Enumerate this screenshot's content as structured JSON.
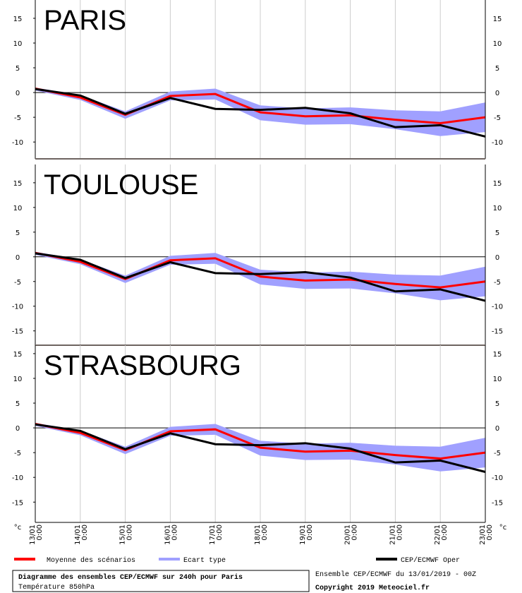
{
  "chart_data": [
    {
      "type": "line",
      "title": "PARIS",
      "categories": [
        "13/01",
        "14/01",
        "15/01",
        "16/01",
        "17/01",
        "18/01",
        "19/01",
        "20/01",
        "21/01",
        "22/01",
        "23/01"
      ],
      "times": [
        "0:00",
        "0:00",
        "0:00",
        "0:00",
        "0:00",
        "0:00",
        "0:00",
        "0:00",
        "0:00",
        "0:00",
        "0:00"
      ],
      "ylim": [
        -13.4,
        18.7
      ],
      "yticks": [
        15,
        10,
        5,
        0,
        -5,
        -10
      ],
      "series": [
        {
          "name": "Ecart type",
          "color": "#a0a0ff",
          "upper": [
            1,
            -0.5,
            -3.8,
            0.2,
            0.8,
            -2.6,
            -3.2,
            -3,
            -3.6,
            -3.8,
            -2
          ],
          "lower": [
            0.4,
            -1.5,
            -5.3,
            -1.6,
            -1.4,
            -5.6,
            -6.5,
            -6.4,
            -7.4,
            -8.8,
            -8
          ]
        },
        {
          "name": "Moyenne des scénarios",
          "color": "#ff0000",
          "values": [
            0.8,
            -1,
            -4.5,
            -0.7,
            -0.3,
            -4,
            -4.8,
            -4.6,
            -5.5,
            -6.2,
            -5
          ]
        },
        {
          "name": "CEP/ECMWF Oper",
          "color": "#000000",
          "values": [
            0.7,
            -0.6,
            -4.3,
            -1.1,
            -3.3,
            -3.5,
            -3.1,
            -4.2,
            -7,
            -6.6,
            -8.9
          ]
        }
      ]
    },
    {
      "type": "line",
      "title": "TOULOUSE",
      "categories": [
        "13/01",
        "14/01",
        "15/01",
        "16/01",
        "17/01",
        "18/01",
        "19/01",
        "20/01",
        "21/01",
        "22/01",
        "23/01"
      ],
      "times": [
        "0:00",
        "0:00",
        "0:00",
        "0:00",
        "0:00",
        "0:00",
        "0:00",
        "0:00",
        "0:00",
        "0:00",
        "0:00"
      ],
      "ylim": [
        -17.9,
        18.7
      ],
      "yticks": [
        15,
        10,
        5,
        0,
        -5,
        -10,
        -15
      ],
      "series": [
        {
          "name": "Ecart type",
          "color": "#a0a0ff",
          "upper": [
            1,
            -0.5,
            -3.8,
            0.2,
            0.8,
            -2.6,
            -3.2,
            -3,
            -3.6,
            -3.8,
            -2
          ],
          "lower": [
            0.4,
            -1.5,
            -5.3,
            -1.6,
            -1.4,
            -5.6,
            -6.5,
            -6.4,
            -7.4,
            -8.8,
            -8
          ]
        },
        {
          "name": "Moyenne des scénarios",
          "color": "#ff0000",
          "values": [
            0.8,
            -1,
            -4.5,
            -0.7,
            -0.3,
            -4,
            -4.8,
            -4.6,
            -5.5,
            -6.2,
            -5
          ]
        },
        {
          "name": "CEP/ECMWF Oper",
          "color": "#000000",
          "values": [
            0.7,
            -0.6,
            -4.3,
            -1.1,
            -3.3,
            -3.5,
            -3.1,
            -4.2,
            -7,
            -6.6,
            -8.9
          ]
        }
      ]
    },
    {
      "type": "line",
      "title": "STRASBOURG",
      "y_unit": "°c",
      "categories": [
        "13/01",
        "14/01",
        "15/01",
        "16/01",
        "17/01",
        "18/01",
        "19/01",
        "20/01",
        "21/01",
        "22/01",
        "23/01"
      ],
      "times": [
        "0:00",
        "0:00",
        "0:00",
        "0:00",
        "0:00",
        "0:00",
        "0:00",
        "0:00",
        "0:00",
        "0:00",
        "0:00"
      ],
      "ylim": [
        -19.1,
        16.7
      ],
      "yticks": [
        15,
        10,
        5,
        0,
        -5,
        -10,
        -15
      ],
      "series": [
        {
          "name": "Ecart type",
          "color": "#a0a0ff",
          "upper": [
            1,
            -0.5,
            -3.8,
            0.2,
            0.8,
            -2.6,
            -3.2,
            -3,
            -3.6,
            -3.8,
            -2
          ],
          "lower": [
            0.4,
            -1.5,
            -5.3,
            -1.6,
            -1.4,
            -5.6,
            -6.5,
            -6.4,
            -7.4,
            -8.8,
            -8
          ]
        },
        {
          "name": "Moyenne des scénarios",
          "color": "#ff0000",
          "values": [
            0.8,
            -1,
            -4.5,
            -0.7,
            -0.3,
            -4,
            -4.8,
            -4.6,
            -5.5,
            -6.2,
            -5
          ]
        },
        {
          "name": "CEP/ECMWF Oper",
          "color": "#000000",
          "values": [
            0.7,
            -0.6,
            -4.3,
            -1.1,
            -3.3,
            -3.5,
            -3.1,
            -4.2,
            -7,
            -6.6,
            -8.9
          ]
        }
      ]
    }
  ],
  "footer": {
    "title": "Diagramme des ensembles CEP/ECMWF sur 240h pour Paris",
    "subtitle": "Température 850hPa",
    "run": "Ensemble CEP/ECMWF du 13/01/2019 - 00Z",
    "copyright": "Copyright 2019 Meteociel.fr"
  }
}
